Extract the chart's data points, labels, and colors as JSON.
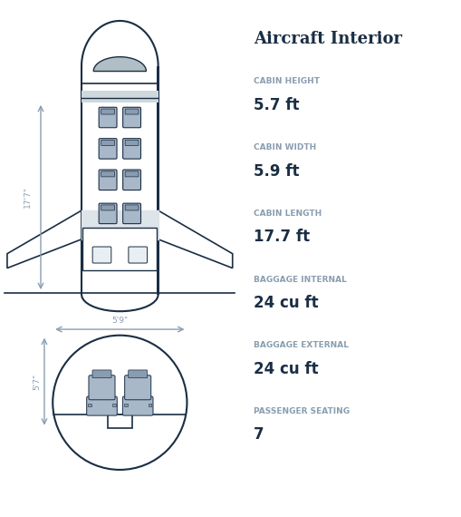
{
  "title": "Aircraft Interior",
  "bg_color": "#ffffff",
  "outline_color": "#1a2e44",
  "seat_fill": "#a8b8c8",
  "seat_dark": "#8a9db0",
  "label_color": "#8a9db0",
  "value_color": "#1a2e44",
  "arrow_color": "#8a9db0",
  "specs": [
    {
      "label": "CABIN HEIGHT",
      "value": "5.7 ft"
    },
    {
      "label": "CABIN WIDTH",
      "value": "5.9 ft"
    },
    {
      "label": "CABIN LENGTH",
      "value": "17.7 ft"
    },
    {
      "label": "BAGGAGE INTERNAL",
      "value": "24 cu ft"
    },
    {
      "label": "BAGGAGE EXTERNAL",
      "value": "24 cu ft"
    },
    {
      "label": "PASSENGER SEATING",
      "value": "7"
    }
  ],
  "dim_17_7": "17'7\"",
  "dim_5_9": "5'9\"",
  "dim_5_7": "5'7\""
}
